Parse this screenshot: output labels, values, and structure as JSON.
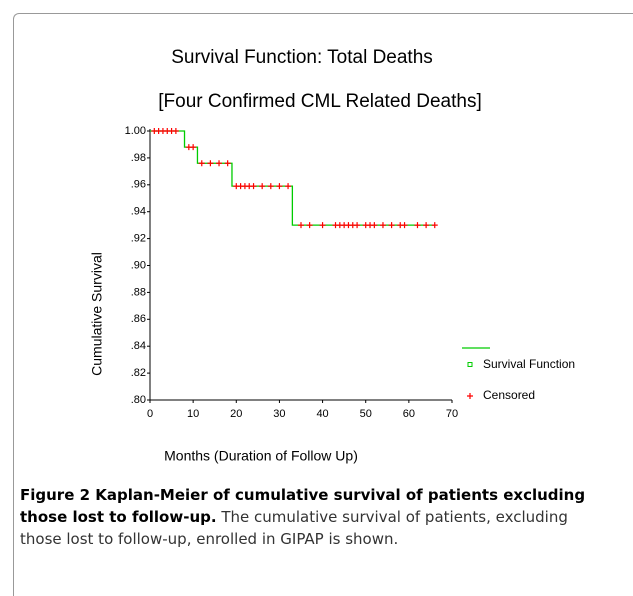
{
  "chart_data": {
    "type": "step",
    "title": "Survival Function: Total Deaths",
    "subtitle": "[Four Confirmed CML Related Deaths]",
    "x_label": "Months  (Duration of Follow Up)",
    "y_label": "Cumulative Survival",
    "series": [
      {
        "name": "Survival Function",
        "color": "#00cc00",
        "marker": "square",
        "x": [
          0,
          8,
          11,
          19,
          33,
          66
        ],
        "values": [
          1.0,
          0.988,
          0.976,
          0.959,
          0.93,
          0.93
        ]
      },
      {
        "name": "Censored",
        "color": "#ff0000",
        "marker": "plus",
        "x": [
          1,
          2,
          3,
          4,
          5,
          6,
          9,
          10,
          12,
          14,
          16,
          18,
          20,
          21,
          22,
          23,
          24,
          26,
          28,
          30,
          32,
          35,
          37,
          40,
          43,
          44,
          45,
          46,
          47,
          48,
          50,
          51,
          52,
          54,
          56,
          58,
          59,
          62,
          64,
          66
        ],
        "values": [
          1.0,
          1.0,
          1.0,
          1.0,
          1.0,
          1.0,
          0.988,
          0.988,
          0.976,
          0.976,
          0.976,
          0.976,
          0.959,
          0.959,
          0.959,
          0.959,
          0.959,
          0.959,
          0.959,
          0.959,
          0.959,
          0.93,
          0.93,
          0.93,
          0.93,
          0.93,
          0.93,
          0.93,
          0.93,
          0.93,
          0.93,
          0.93,
          0.93,
          0.93,
          0.93,
          0.93,
          0.93,
          0.93,
          0.93,
          0.93
        ]
      }
    ],
    "xlim": [
      0,
      70
    ],
    "xticks": [
      0,
      10,
      20,
      30,
      40,
      50,
      60,
      70
    ],
    "ylim": [
      0.8,
      1.0
    ],
    "yticks": [
      {
        "value": 0.8,
        "label": ".80"
      },
      {
        "value": 0.82,
        "label": ".82"
      },
      {
        "value": 0.84,
        "label": ".84"
      },
      {
        "value": 0.86,
        "label": ".86"
      },
      {
        "value": 0.88,
        "label": ".88"
      },
      {
        "value": 0.9,
        "label": ".90"
      },
      {
        "value": 0.92,
        "label": ".92"
      },
      {
        "value": 0.94,
        "label": ".94"
      },
      {
        "value": 0.96,
        "label": ".96"
      },
      {
        "value": 0.98,
        "label": ".98"
      },
      {
        "value": 1.0,
        "label": "1.00"
      }
    ],
    "grid": false,
    "legend": "right"
  },
  "caption": {
    "label": "Figure 2",
    "title": "Kaplan-Meier of cumulative survival of patients excluding those lost to follow-up.",
    "text": "The cumulative survival of patients, excluding those lost to follow-up, enrolled in GIPAP is shown."
  }
}
